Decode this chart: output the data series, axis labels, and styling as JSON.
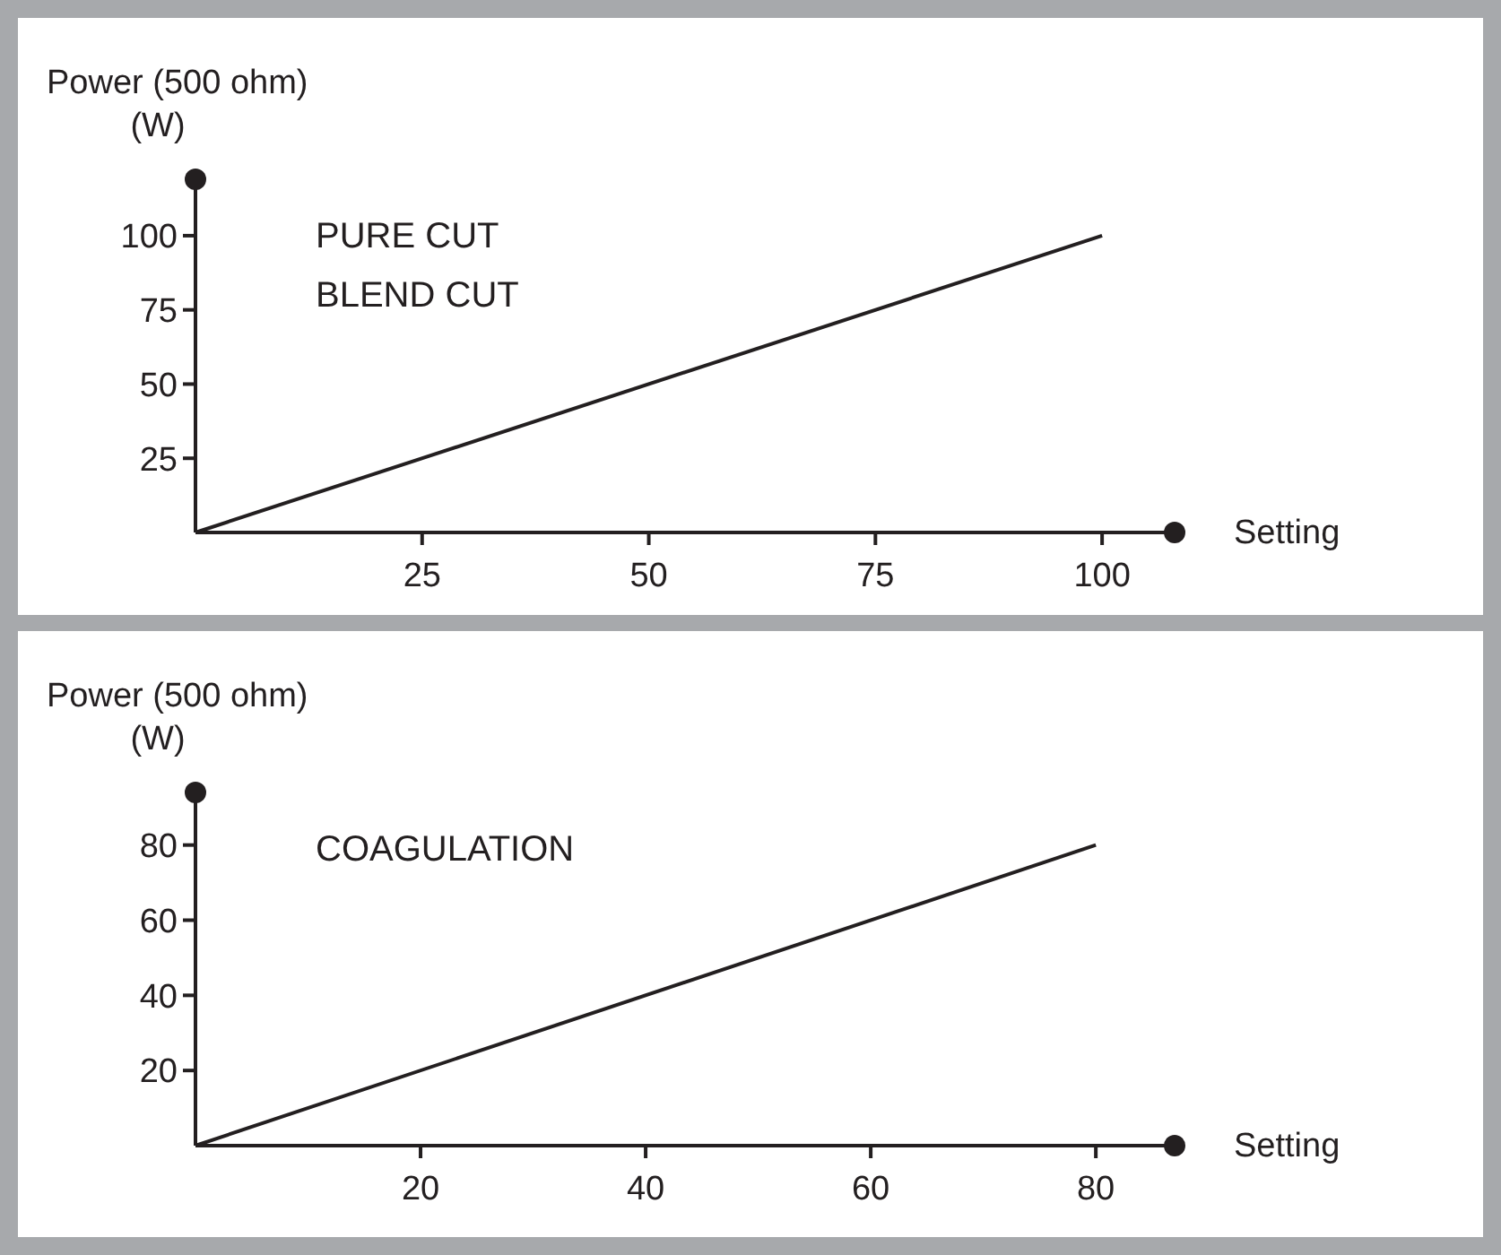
{
  "chart_data": [
    {
      "type": "line",
      "ylabel": "Power (500 ohm)\n(W)",
      "xlabel": "Setting",
      "annotations": [
        "PURE CUT",
        "BLEND CUT"
      ],
      "x": [
        0,
        100
      ],
      "series": [
        {
          "color": "#231f20",
          "values": [
            0,
            100
          ]
        }
      ],
      "xlim": [
        0,
        108
      ],
      "ylim": [
        0,
        119
      ],
      "xticks": [
        25,
        50,
        75,
        100
      ],
      "yticks": [
        25,
        50,
        75,
        100
      ],
      "grid": false
    },
    {
      "type": "line",
      "ylabel": "Power (500 ohm)\n(W)",
      "xlabel": "Setting",
      "annotations": [
        "COAGULATION"
      ],
      "x": [
        0,
        80
      ],
      "series": [
        {
          "color": "#231f20",
          "values": [
            0,
            80
          ]
        }
      ],
      "xlim": [
        0,
        87
      ],
      "ylim": [
        0,
        94
      ],
      "xticks": [
        20,
        40,
        60,
        80
      ],
      "yticks": [
        20,
        40,
        60,
        80
      ],
      "grid": false
    }
  ]
}
